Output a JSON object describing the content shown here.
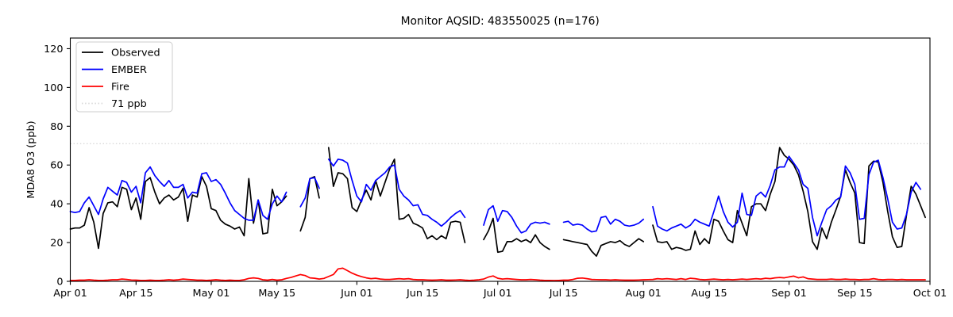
{
  "title": "Monitor AQSID: 483550025 (n=176)",
  "colors": {
    "observed": "#000000",
    "ember": "#0000ff",
    "fire": "#ff0000",
    "threshold": "#d9d9d9",
    "axis": "#000000",
    "legend_border": "#cccccc",
    "background": "#ffffff"
  },
  "chart_data": {
    "type": "line",
    "title": "Monitor AQSID: 483550025 (n=176)",
    "xlabel": "",
    "ylabel": "MDA8 O3 (ppb)",
    "ylim": [
      0,
      125.5
    ],
    "yticks": [
      0,
      20,
      40,
      60,
      80,
      100,
      120
    ],
    "x_days_span": 183,
    "xtick_days": [
      0,
      14,
      30,
      44,
      61,
      75,
      91,
      105,
      122,
      136,
      153,
      167,
      183
    ],
    "xtick_labels": [
      "Apr 01",
      "Apr 15",
      "May 01",
      "May 15",
      "Jun 01",
      "Jun 15",
      "Jul 01",
      "Jul 15",
      "Aug 01",
      "Aug 15",
      "Sep 01",
      "Sep 15",
      "Oct 01"
    ],
    "grid": false,
    "legend_position": "upper left",
    "legend_entries": [
      "Observed",
      "EMBER",
      "Fire",
      "71 ppb"
    ],
    "threshold": {
      "label": "71 ppb",
      "value": 71
    },
    "series": [
      {
        "name": "Observed",
        "color": "#000000",
        "values": [
          27,
          27.5,
          27.5,
          29,
          38,
          30.5,
          17,
          35,
          40.5,
          41,
          38.5,
          48.5,
          47.5,
          37,
          43,
          32,
          51.5,
          53.5,
          46,
          40,
          43,
          44.5,
          42,
          43.5,
          48,
          31,
          44.5,
          43.5,
          54,
          49,
          37.5,
          36.5,
          31.5,
          29.5,
          28.5,
          27,
          28,
          23.5,
          53,
          30,
          42,
          24.5,
          25,
          47.5,
          39,
          41,
          44,
          null,
          null,
          26,
          33,
          53,
          54,
          43,
          null,
          69,
          49,
          56,
          55.5,
          53,
          38,
          36,
          42,
          47,
          42,
          52,
          44,
          51,
          58,
          63,
          32,
          32.5,
          34.5,
          30,
          29,
          27.5,
          22,
          23.5,
          21.5,
          23.5,
          22,
          30.5,
          31,
          30.5,
          20,
          null,
          null,
          null,
          21.5,
          26,
          32.5,
          15,
          15.5,
          20.5,
          20.5,
          22,
          20.5,
          21.5,
          20,
          24,
          20,
          18,
          16.5,
          null,
          null,
          21.5,
          21,
          20.5,
          20,
          19.5,
          19,
          15.5,
          13,
          18.5,
          19.5,
          20.5,
          20,
          21,
          19,
          18,
          20,
          22,
          20.5,
          null,
          29,
          20.5,
          20,
          20.5,
          16.5,
          17.5,
          17,
          16,
          16.5,
          26,
          19,
          22,
          19.5,
          32,
          31,
          26,
          21.5,
          20,
          36.5,
          30,
          23.5,
          38.5,
          40,
          40,
          36.5,
          45,
          51.5,
          69,
          65,
          63,
          60,
          55,
          46.5,
          36,
          20.5,
          16.5,
          27.5,
          22,
          30.5,
          37,
          44,
          57.5,
          51,
          45.5,
          20,
          19.5,
          59.5,
          62,
          61.5,
          51,
          36,
          23,
          17.5,
          18,
          34,
          49,
          45,
          39,
          33,
          null
        ]
      },
      {
        "name": "EMBER",
        "color": "#0000ff",
        "values": [
          36,
          35.5,
          36,
          40.5,
          43.5,
          39,
          34.5,
          42.5,
          48.5,
          46.5,
          44.5,
          52,
          51,
          46,
          49,
          40.5,
          56,
          59,
          54.5,
          51.5,
          49,
          52,
          48.5,
          48.5,
          50,
          43,
          46,
          45.5,
          55.5,
          56,
          51.5,
          52.5,
          50,
          45.5,
          40.5,
          36.5,
          34.5,
          32.5,
          31.5,
          31.5,
          42,
          34,
          32,
          40,
          44,
          41,
          46,
          null,
          null,
          38.5,
          43,
          53,
          53.5,
          48,
          null,
          63,
          59.5,
          63,
          62.5,
          61,
          52,
          44,
          41,
          50,
          47,
          52,
          54,
          56,
          59,
          60,
          47.5,
          44,
          42,
          39,
          39.5,
          34.5,
          34,
          32,
          30.5,
          28.5,
          30.5,
          33,
          35,
          36.5,
          33,
          null,
          null,
          null,
          29,
          37,
          39,
          31,
          36.5,
          36,
          33,
          28.5,
          25,
          26,
          29.5,
          30.5,
          30,
          30.5,
          29.5,
          null,
          null,
          30.5,
          31,
          29,
          29.5,
          29,
          27,
          25.5,
          26,
          33,
          33.5,
          29.5,
          32,
          31,
          29,
          28.5,
          29,
          30,
          32,
          null,
          38.5,
          28.5,
          27,
          26,
          27.5,
          28.5,
          29.5,
          27.5,
          29,
          32,
          30.5,
          29.5,
          28.5,
          36,
          44,
          36,
          30.5,
          28,
          30.5,
          45.5,
          34.5,
          34,
          44,
          46,
          43.5,
          49.5,
          57.5,
          59,
          59,
          64.5,
          61,
          57.5,
          50,
          48,
          33,
          23.5,
          30.5,
          37,
          39,
          42,
          43.5,
          59.5,
          56,
          50,
          32,
          32.5,
          55,
          61.5,
          62.5,
          53.5,
          42.5,
          30.5,
          27,
          27.5,
          34.5,
          46,
          51,
          47.5,
          null,
          null
        ]
      },
      {
        "name": "Fire",
        "color": "#ff0000",
        "values": [
          0.5,
          0.5,
          0.6,
          0.6,
          0.8,
          0.6,
          0.5,
          0.5,
          0.6,
          0.8,
          0.8,
          1.2,
          1,
          0.7,
          0.6,
          0.5,
          0.5,
          0.6,
          0.5,
          0.5,
          0.6,
          0.8,
          0.6,
          0.8,
          1.2,
          1,
          0.8,
          0.6,
          0.6,
          0.5,
          0.6,
          0.8,
          0.6,
          0.5,
          0.6,
          0.5,
          0.5,
          0.8,
          1.5,
          1.8,
          1.5,
          0.8,
          0.6,
          1,
          0.6,
          0.8,
          1.5,
          2,
          2.8,
          3.5,
          3,
          1.8,
          1.6,
          1.2,
          1.5,
          2.5,
          3.5,
          6.4,
          6.8,
          5.5,
          4.2,
          3.2,
          2.4,
          1.8,
          1.4,
          1.6,
          1.2,
          1,
          1,
          1.2,
          1.4,
          1.2,
          1.4,
          1,
          0.8,
          0.8,
          0.7,
          0.6,
          0.7,
          0.8,
          0.6,
          0.6,
          0.7,
          0.8,
          0.6,
          0.5,
          0.6,
          0.8,
          1.2,
          2.2,
          2.8,
          1.6,
          1.2,
          1.4,
          1.2,
          1,
          0.8,
          0.8,
          1,
          0.8,
          0.6,
          0.5,
          0.5,
          0.4,
          0.5,
          0.6,
          0.6,
          1,
          1.6,
          1.7,
          1.4,
          1,
          0.9,
          0.8,
          0.8,
          0.7,
          0.8,
          0.7,
          0.6,
          0.6,
          0.6,
          0.7,
          0.8,
          0.9,
          1,
          1.4,
          1.2,
          1.4,
          1.2,
          1,
          1.4,
          1,
          1.6,
          1.4,
          1,
          0.8,
          1,
          1.2,
          1,
          0.8,
          1,
          0.8,
          1,
          1.2,
          1,
          1.2,
          1.4,
          1.2,
          1.6,
          1.4,
          1.8,
          2,
          1.8,
          2.3,
          2.7,
          1.8,
          2.3,
          1.4,
          1.2,
          1,
          1,
          1,
          1.2,
          1,
          1,
          1.2,
          1,
          1,
          0.8,
          1,
          1,
          1.4,
          1,
          0.8,
          1,
          1,
          0.8,
          1,
          0.8,
          0.8,
          0.8,
          0.8,
          0.8,
          null
        ]
      }
    ]
  },
  "layout_note": "time series of daily MDA8 ozone, Apr 01 through Oct 01"
}
